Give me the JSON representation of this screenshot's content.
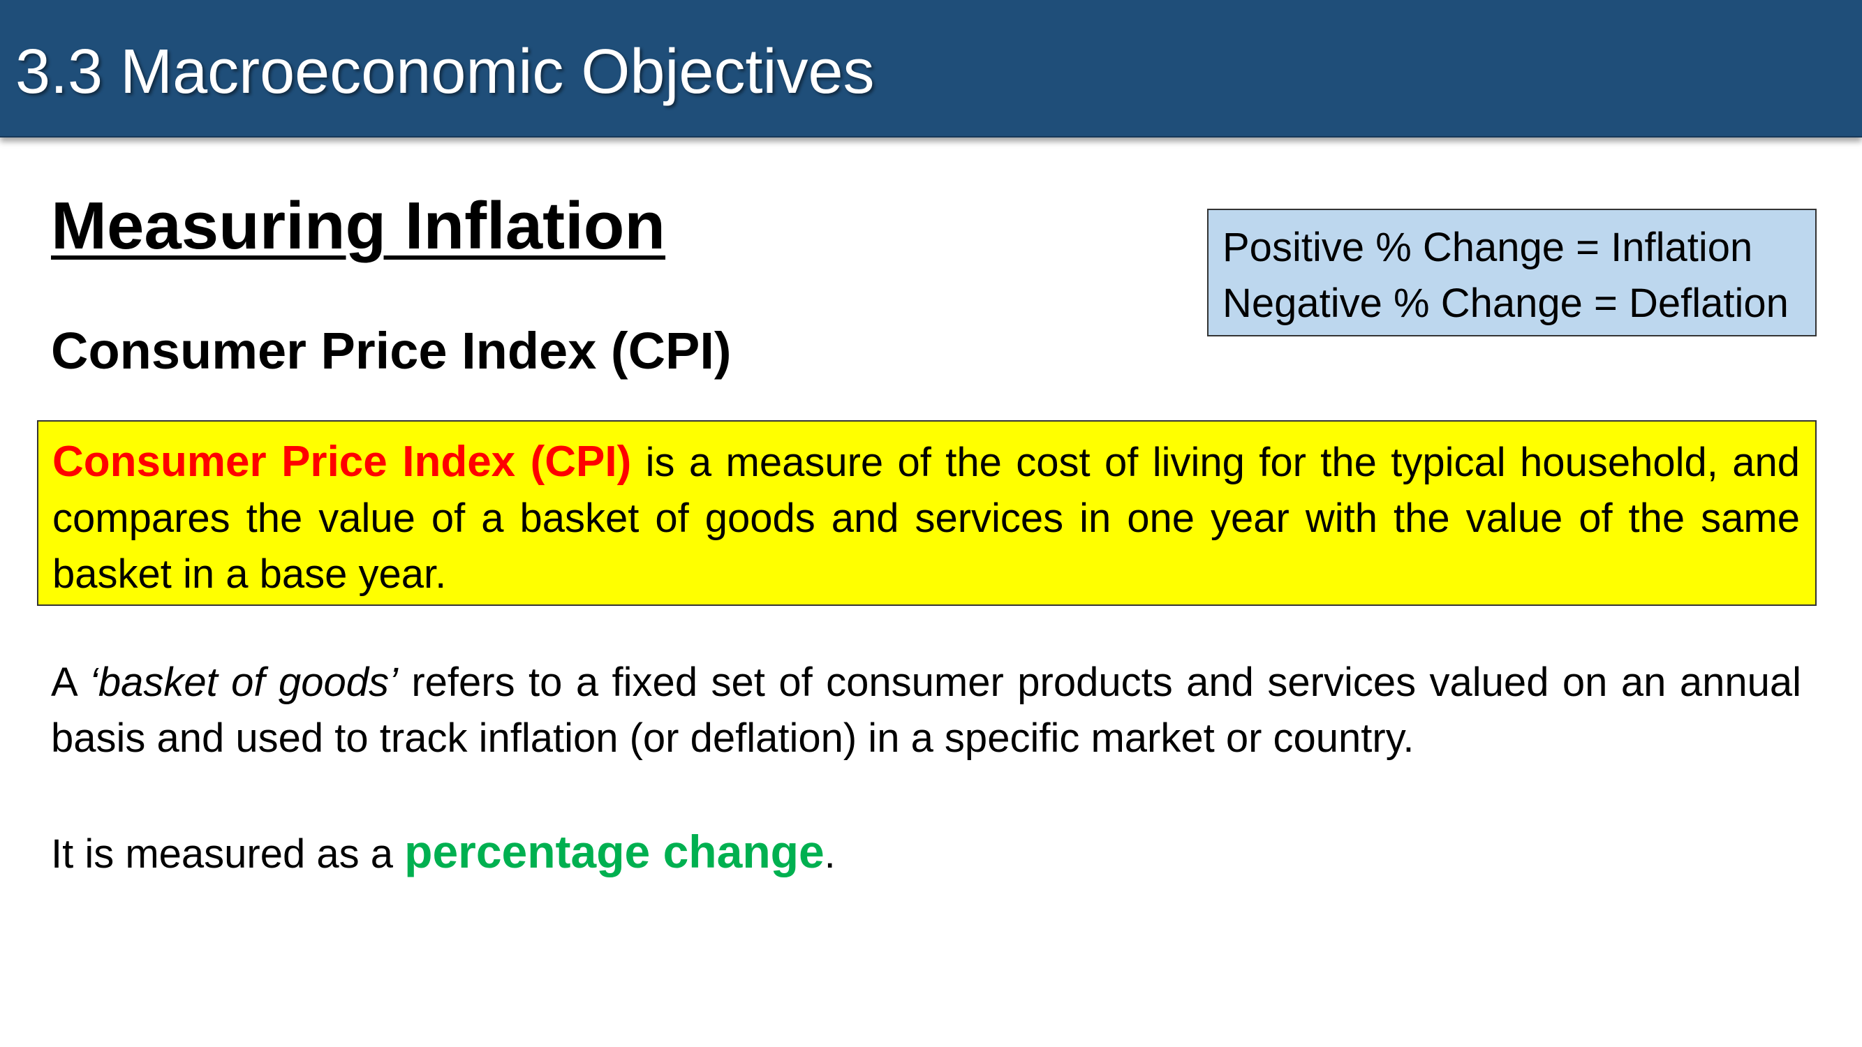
{
  "header": {
    "title": "3.3 Macroeconomic Objectives"
  },
  "main": {
    "heading": "Measuring Inflation",
    "subheading": "Consumer Price Index (CPI)"
  },
  "note_box": {
    "line1": "Positive % Change = Inflation",
    "line2": "Negative % Change = Deflation"
  },
  "definition": {
    "term": "Consumer Price Index (CPI)",
    "text": " is a measure of the cost of living for the typical household, and compares the value of a basket of goods and services in one year with the value of the same basket in a base year."
  },
  "basket": {
    "prefix": "A ",
    "term": "‘basket of goods’",
    "text": " refers to a fixed set of consumer products and services valued on an annual basis and used to track inflation (or deflation) in a specific market or country."
  },
  "measured": {
    "prefix": "It is measured as a ",
    "highlight": "percentage change",
    "suffix": "."
  },
  "colors": {
    "header_background": "#1f4e79",
    "note_background": "#bdd7ee",
    "definition_background": "#ffff00",
    "term_red": "#ff0000",
    "highlight_green": "#00b050"
  }
}
